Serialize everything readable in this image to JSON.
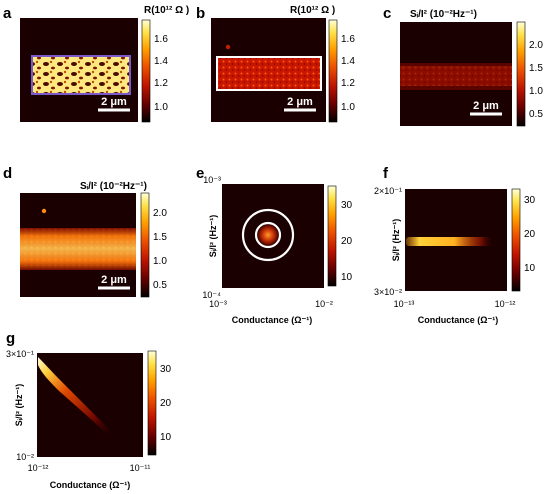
{
  "panels": [
    {
      "id": "a",
      "label": "a",
      "colorbar_title": "R(10¹² Ω )",
      "colorbar_ticks": [
        "1.6",
        "1.4",
        "1.2",
        "1.0"
      ],
      "scalebar": "2 μm"
    },
    {
      "id": "b",
      "label": "b",
      "colorbar_title": "R(10¹² Ω )",
      "colorbar_ticks": [
        "1.6",
        "1.4",
        "1.2",
        "1.0"
      ],
      "scalebar": "2 μm"
    },
    {
      "id": "c",
      "label": "c",
      "colorbar_title": "Sᵢ/I² (10⁻²Hz⁻¹)",
      "colorbar_ticks": [
        "2.0",
        "1.5",
        "1.0",
        "0.5"
      ],
      "scalebar": "2 μm"
    },
    {
      "id": "d",
      "label": "d",
      "colorbar_title": "Sᵢ/I² (10⁻²Hz⁻¹)",
      "colorbar_ticks": [
        "2.0",
        "1.5",
        "1.0",
        "0.5"
      ],
      "scalebar": "2 μm"
    },
    {
      "id": "e",
      "label": "e",
      "xlabel": "Conductance (Ω⁻¹)",
      "ylabel": "Sᵢ/I² (Hz⁻¹)",
      "x_ticks": [
        "10⁻³",
        "10⁻²"
      ],
      "y_ticks": [
        "10⁻³",
        "10⁻⁴"
      ],
      "colorbar_ticks": [
        "30",
        "20",
        "10"
      ]
    },
    {
      "id": "f",
      "label": "f",
      "xlabel": "Conductance (Ω⁻¹)",
      "ylabel": "Sᵢ/I² (Hz⁻¹)",
      "x_ticks": [
        "10⁻¹³",
        "10⁻¹²"
      ],
      "y_ticks": [
        "2×10⁻¹",
        "3×10⁻²"
      ],
      "colorbar_ticks": [
        "30",
        "20",
        "10"
      ]
    },
    {
      "id": "g",
      "label": "g",
      "xlabel": "Conductance (Ω⁻¹)",
      "ylabel": "Sᵢ/I² (Hz⁻¹)",
      "x_ticks": [
        "10⁻¹²",
        "10⁻¹¹"
      ],
      "y_ticks": [
        "3×10⁻¹",
        "10⁻²"
      ],
      "colorbar_ticks": [
        "30",
        "20",
        "10"
      ]
    }
  ],
  "colors": {
    "map_background": "#150000",
    "colormap": [
      "#000000",
      "#5a0000",
      "#b10b00",
      "#e83c00",
      "#ff8f00",
      "#ffd43a",
      "#ffffd0"
    ],
    "region_outline_a": "#7a5acb",
    "region_outline_b": "#ffffff"
  }
}
